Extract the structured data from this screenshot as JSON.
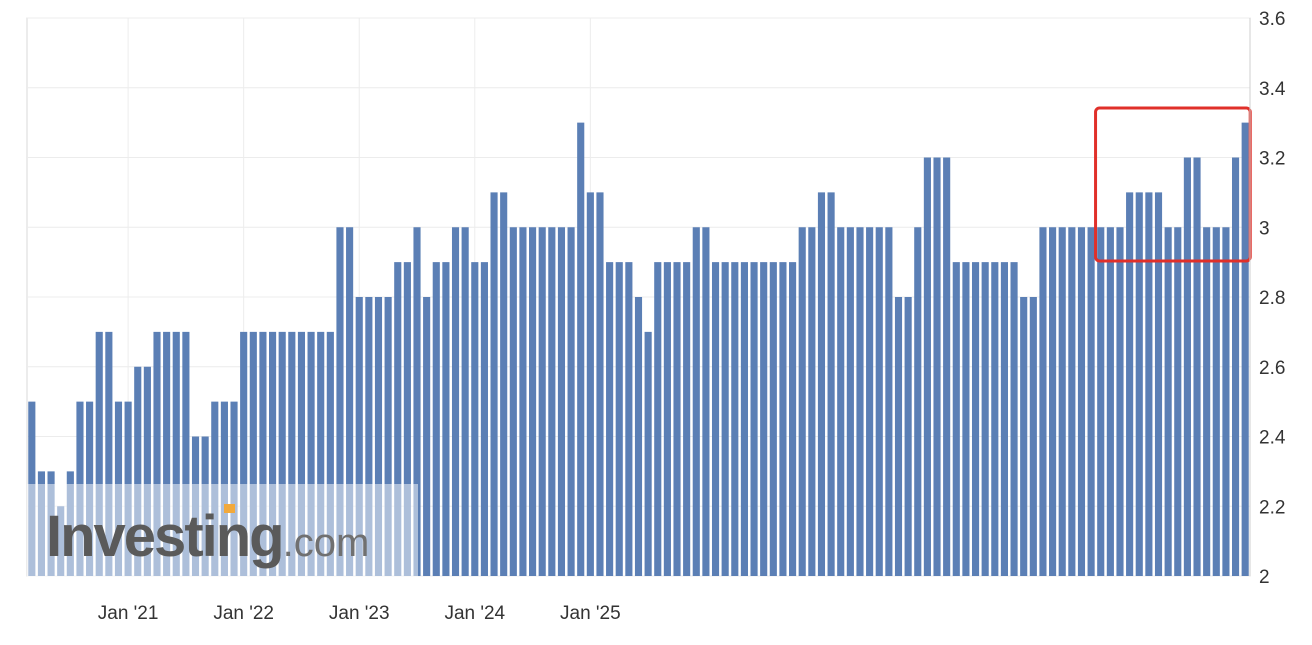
{
  "watermark": {
    "brand": "Investing",
    "suffix": ".com"
  },
  "chart_data": {
    "type": "bar",
    "title": "",
    "xlabel": "",
    "ylabel": "",
    "ylim": [
      2,
      3.6
    ],
    "y_ticks": [
      "2",
      "2.2",
      "2.4",
      "2.6",
      "2.8",
      "3",
      "3.2",
      "3.4",
      "3.6"
    ],
    "y_axis_position": "right",
    "x_ticks": [
      "Jan '21",
      "Jan '22",
      "Jan '23",
      "Jan '24",
      "Jan '25"
    ],
    "x_tick_index": [
      10,
      22,
      34,
      46,
      58
    ],
    "grid": true,
    "bar_color": "#5b7fb5",
    "values": [
      2.5,
      2.3,
      2.3,
      2.2,
      2.3,
      2.5,
      2.5,
      2.7,
      2.7,
      2.5,
      2.5,
      2.6,
      2.6,
      2.7,
      2.7,
      2.7,
      2.7,
      2.4,
      2.4,
      2.5,
      2.5,
      2.5,
      2.7,
      2.7,
      2.7,
      2.7,
      2.7,
      2.7,
      2.7,
      2.7,
      2.7,
      2.7,
      3.0,
      3.0,
      2.8,
      2.8,
      2.8,
      2.8,
      2.9,
      2.9,
      3.0,
      2.8,
      2.9,
      2.9,
      3.0,
      3.0,
      2.9,
      2.9,
      3.1,
      3.1,
      3.0,
      3.0,
      3.0,
      3.0,
      3.0,
      3.0,
      3.0,
      3.3,
      3.1,
      3.1,
      2.9,
      2.9,
      2.9,
      2.8,
      2.7,
      2.9,
      2.9,
      2.9,
      2.9,
      3.0,
      3.0,
      2.9,
      2.9,
      2.9,
      2.9,
      2.9,
      2.9,
      2.9,
      2.9,
      2.9,
      3.0,
      3.0,
      3.1,
      3.1,
      3.0,
      3.0,
      3.0,
      3.0,
      3.0,
      3.0,
      2.8,
      2.8,
      3.0,
      3.2,
      3.2,
      3.2,
      2.9,
      2.9,
      2.9,
      2.9,
      2.9,
      2.9,
      2.9,
      2.8,
      2.8,
      3.0,
      3.0,
      3.0,
      3.0,
      3.0,
      3.0,
      3.0,
      3.0,
      3.0,
      3.1,
      3.1,
      3.1,
      3.1,
      3.0,
      3.0,
      3.2,
      3.2,
      3.0,
      3.0,
      3.0,
      3.2,
      3.3
    ],
    "annotation": {
      "type": "highlight-box",
      "color": "#e0302a",
      "first_index": 112,
      "last_index": 120
    }
  }
}
